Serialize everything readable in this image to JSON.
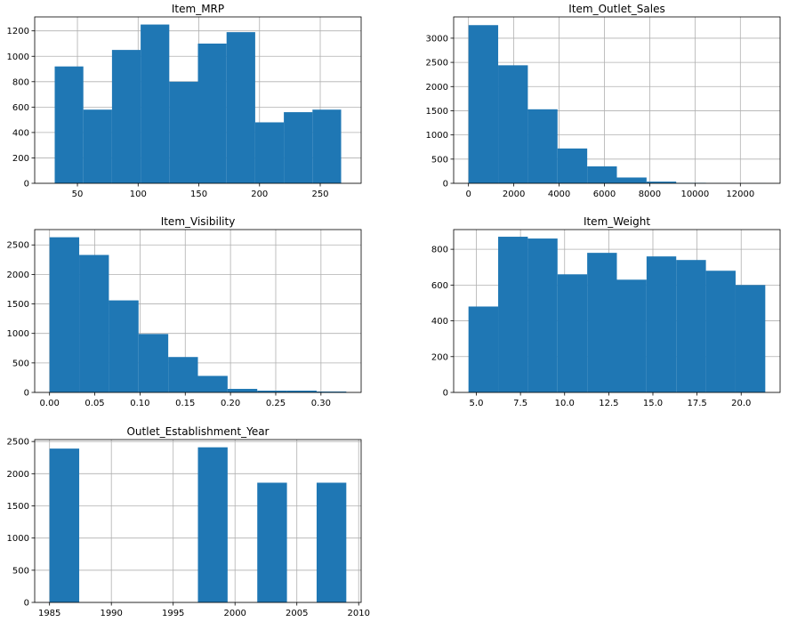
{
  "bar_color": "#1f77b4",
  "grid_color": "#b0b0b0",
  "chart_data": [
    {
      "type": "bar",
      "title": "Item_MRP",
      "bin_edges": [
        31.29,
        54.88,
        78.47,
        102.07,
        125.66,
        149.25,
        172.85,
        196.44,
        220.03,
        243.62,
        267.22
      ],
      "values": [
        920,
        580,
        1050,
        1250,
        800,
        1100,
        1190,
        480,
        560,
        580
      ],
      "xlim": [
        14.8,
        283.7
      ],
      "ylim": [
        0,
        1310
      ],
      "xticks": [
        50,
        100,
        150,
        200,
        250
      ],
      "yticks": [
        0,
        200,
        400,
        600,
        800,
        1000,
        1200
      ],
      "grid": true
    },
    {
      "type": "bar",
      "title": "Item_Outlet_Sales",
      "bin_edges": [
        0,
        1310,
        2620,
        3930,
        5240,
        6550,
        7860,
        9170,
        10480,
        11790,
        13100
      ],
      "values": [
        3270,
        2440,
        1530,
        720,
        350,
        120,
        35,
        10,
        3,
        2
      ],
      "xlim": [
        -655,
        13755
      ],
      "ylim": [
        0,
        3440
      ],
      "xticks": [
        0,
        2000,
        4000,
        6000,
        8000,
        10000,
        12000
      ],
      "yticks": [
        0,
        500,
        1000,
        1500,
        2000,
        2500,
        3000
      ],
      "grid": true
    },
    {
      "type": "bar",
      "title": "Item_Visibility",
      "bin_edges": [
        0,
        0.0328,
        0.0656,
        0.0984,
        0.1312,
        0.164,
        0.1968,
        0.2296,
        0.2624,
        0.2952,
        0.328
      ],
      "values": [
        2630,
        2330,
        1560,
        990,
        600,
        280,
        60,
        30,
        30,
        15
      ],
      "xlim": [
        -0.0164,
        0.3444
      ],
      "ylim": [
        0,
        2760
      ],
      "xticks": [
        "0.00",
        "0.05",
        "0.10",
        "0.15",
        "0.20",
        "0.25",
        "0.30"
      ],
      "yticks": [
        0,
        500,
        1000,
        1500,
        2000,
        2500
      ],
      "grid": true
    },
    {
      "type": "bar",
      "title": "Item_Weight",
      "bin_edges": [
        4.555,
        6.236,
        7.917,
        9.598,
        11.279,
        12.96,
        14.641,
        16.322,
        18.003,
        19.684,
        21.365
      ],
      "values": [
        480,
        870,
        860,
        660,
        780,
        630,
        760,
        740,
        680,
        600
      ],
      "xlim": [
        3.715,
        22.205
      ],
      "ylim": [
        0,
        910
      ],
      "xticks": [
        "5.0",
        "7.5",
        "10.0",
        "12.5",
        "15.0",
        "17.5",
        "20.0"
      ],
      "yticks": [
        0,
        200,
        400,
        600,
        800
      ],
      "grid": true
    },
    {
      "type": "bar",
      "title": "Outlet_Establishment_Year",
      "bin_edges": [
        1985,
        1987.4,
        1989.8,
        1992.2,
        1994.6,
        1997,
        1999.4,
        2001.8,
        2004.2,
        2006.6,
        2009
      ],
      "values": [
        2390,
        0,
        0,
        0,
        0,
        2410,
        0,
        1860,
        0,
        1860
      ],
      "xlim": [
        1983.8,
        2010.2
      ],
      "ylim": [
        0,
        2530
      ],
      "xticks": [
        1985,
        1990,
        1995,
        2000,
        2005,
        2010
      ],
      "yticks": [
        0,
        500,
        1000,
        1500,
        2000,
        2500
      ],
      "grid": true
    }
  ]
}
